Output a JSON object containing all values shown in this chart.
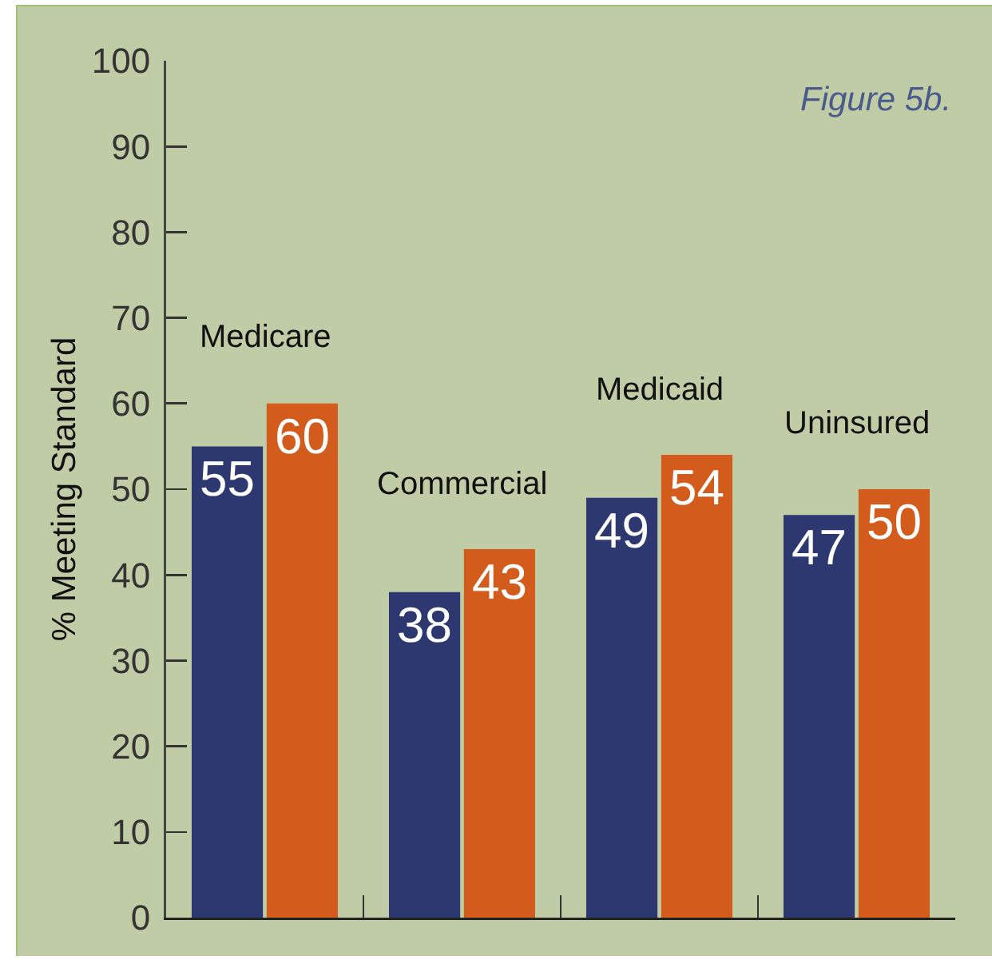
{
  "chart_data": {
    "type": "bar",
    "annotations": [
      "Figure 5b."
    ],
    "ylabel": "% Meeting Standard",
    "categories": [
      "Medicare",
      "Commercial",
      "Medicaid",
      "Uninsured"
    ],
    "series": [
      {
        "color": "#2d3870",
        "values": [
          55,
          38,
          49,
          47
        ]
      },
      {
        "color": "#d35b1c",
        "values": [
          60,
          43,
          54,
          50
        ]
      }
    ],
    "ylim": [
      0,
      100
    ],
    "yticks": [
      0,
      10,
      20,
      30,
      40,
      50,
      60,
      70,
      80,
      90,
      100
    ],
    "data_labels": true
  }
}
